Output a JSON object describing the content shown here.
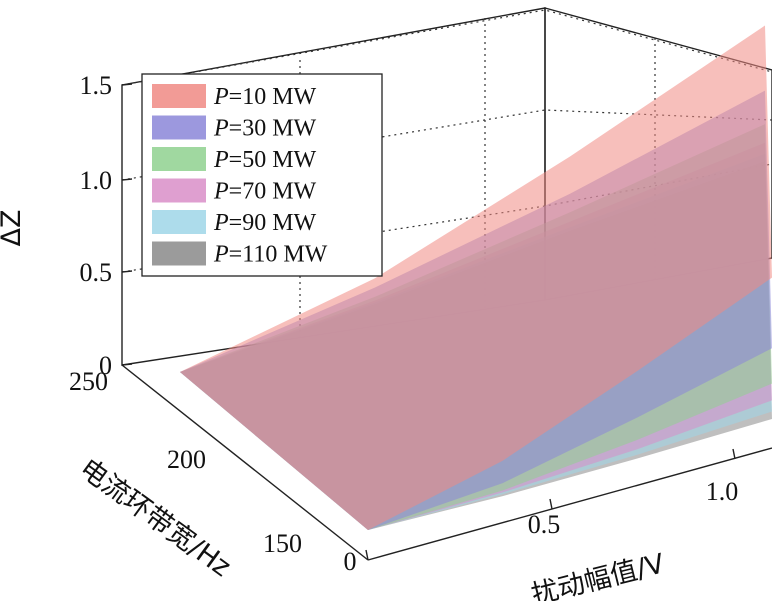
{
  "chart_data": {
    "type": "surface",
    "title": "",
    "xlabel": "扰动幅值/V",
    "ylabel": "电流环带宽/Hz",
    "zlabel": "ΔZ",
    "x_ticks": [
      "0",
      "0.5",
      "1.0"
    ],
    "y_ticks": [
      "150",
      "200",
      "250"
    ],
    "z_ticks": [
      "0",
      "0.5",
      "1.0",
      "1.5"
    ],
    "xlim": [
      0,
      1.1
    ],
    "ylim": [
      130,
      250
    ],
    "zlim": [
      0,
      1.5
    ],
    "grid": true,
    "legend_position": "top-left",
    "series": [
      {
        "name": "P=10 MW",
        "color": "#f08a84",
        "values_high_bw": [
          0,
          0.3,
          0.75,
          1.25
        ],
        "values_low_bw": [
          0,
          0.22,
          0.55,
          0.9
        ]
      },
      {
        "name": "P=30 MW",
        "color": "#8b86d8",
        "values_high_bw": [
          0,
          0.25,
          0.55,
          0.9
        ],
        "values_low_bw": [
          0,
          0.1,
          0.3,
          0.52
        ]
      },
      {
        "name": "P=50 MW",
        "color": "#8fd18f",
        "values_high_bw": [
          0,
          0.2,
          0.45,
          0.72
        ],
        "values_low_bw": [
          0,
          0.06,
          0.18,
          0.33
        ]
      },
      {
        "name": "P=70 MW",
        "color": "#d98ec8",
        "values_high_bw": [
          0,
          0.18,
          0.4,
          0.62
        ],
        "values_low_bw": [
          0,
          0.05,
          0.13,
          0.24
        ]
      },
      {
        "name": "P=90 MW",
        "color": "#9fd6e8",
        "values_high_bw": [
          0,
          0.17,
          0.37,
          0.56
        ],
        "values_low_bw": [
          0,
          0.04,
          0.1,
          0.18
        ]
      },
      {
        "name": "P=110 MW",
        "color": "#8a8a8a",
        "values_high_bw": [
          0,
          0.16,
          0.35,
          0.52
        ],
        "values_low_bw": [
          0,
          0.03,
          0.08,
          0.14
        ]
      }
    ],
    "x_samples": [
      0,
      0.35,
      0.7,
      1.05
    ]
  }
}
